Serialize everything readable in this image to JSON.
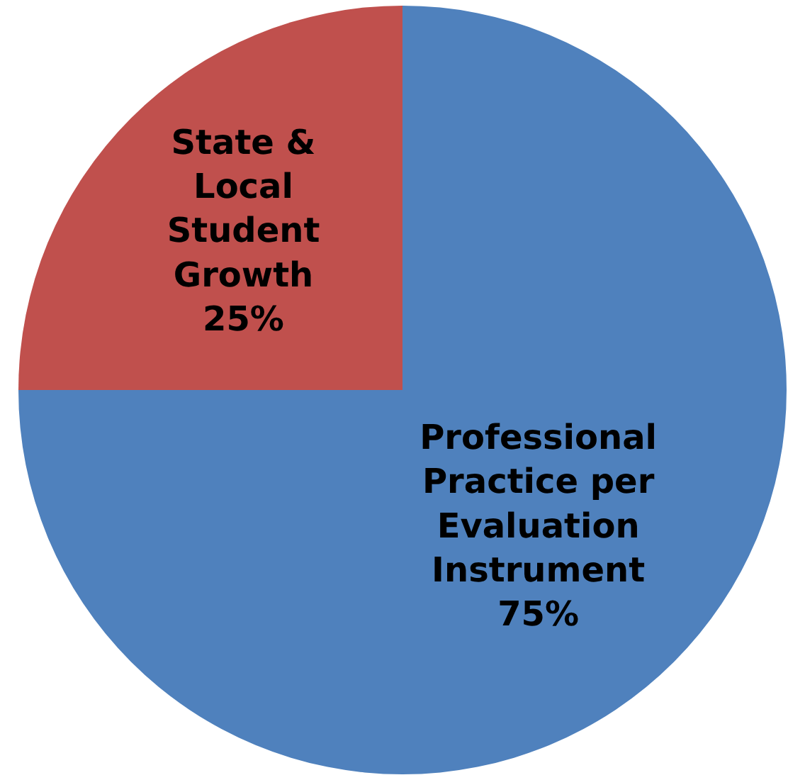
{
  "chart_data": {
    "type": "pie",
    "categories": [
      "Professional Practice per Evaluation Instrument",
      "State & Local Student Growth"
    ],
    "values": [
      75,
      25
    ],
    "value_labels": [
      "75%",
      "25%"
    ],
    "colors": [
      "#4f81bd",
      "#c0504d"
    ],
    "legend": false
  }
}
